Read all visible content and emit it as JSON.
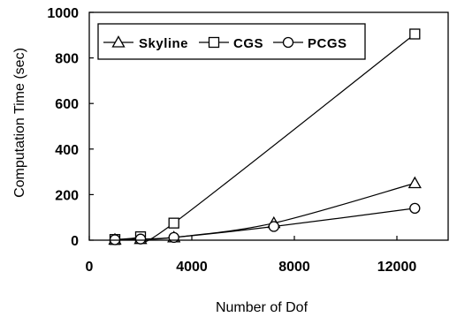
{
  "chart_data": {
    "type": "line",
    "xlabel": "Number of Dof",
    "ylabel": "Computation Time (sec)",
    "xlim": [
      0,
      14000
    ],
    "ylim": [
      0,
      1000
    ],
    "xticks": [
      "0",
      "4000",
      "8000",
      "12000"
    ],
    "yticks": [
      "0",
      "200",
      "400",
      "600",
      "800",
      "1000"
    ],
    "legend_position": "top-left",
    "series": [
      {
        "name": "Skyline",
        "marker": "triangle",
        "x": [
          1000,
          2000,
          3300,
          7200,
          12700
        ],
        "y": [
          2,
          5,
          12,
          75,
          250
        ]
      },
      {
        "name": "CGS",
        "marker": "square",
        "x": [
          1000,
          2000,
          3300,
          12700
        ],
        "y": [
          3,
          15,
          75,
          905
        ]
      },
      {
        "name": "PCGS",
        "marker": "circle",
        "x": [
          1000,
          2000,
          3300,
          7200,
          12700
        ],
        "y": [
          2,
          5,
          12,
          60,
          140
        ]
      }
    ]
  }
}
